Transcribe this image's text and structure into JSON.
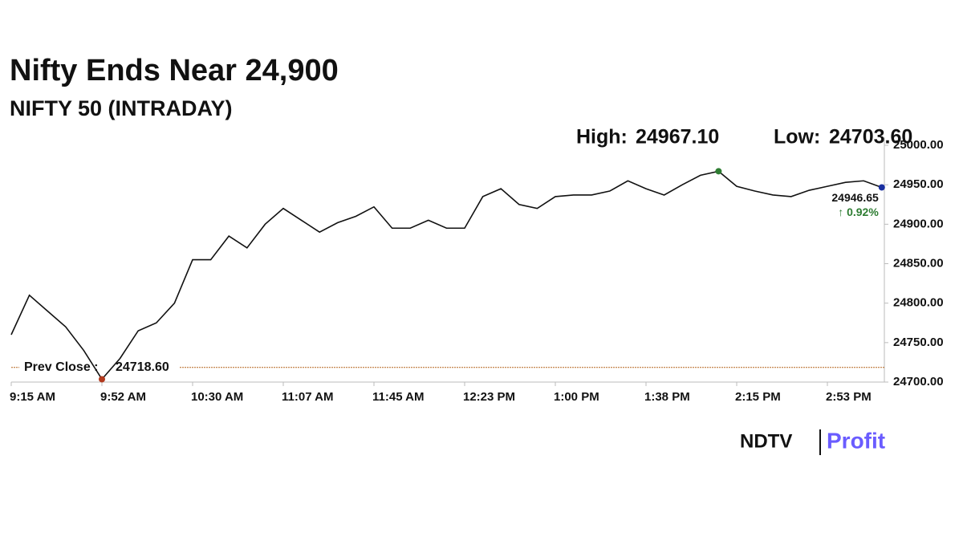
{
  "chart_data": {
    "type": "line",
    "title": "Nifty Ends Near 24,900",
    "subtitle": "NIFTY 50 (INTRADAY)",
    "high": {
      "label": "High:",
      "value": 24967.1,
      "value_label": "24967.10",
      "color": "#2e7d32"
    },
    "low": {
      "label": "Low:",
      "value": 24703.6,
      "value_label": "24703.60",
      "color": "#b23a1e"
    },
    "prev_close": {
      "label": "Prev Close :",
      "value": 24718.6,
      "value_label": "24718.60",
      "color": "#b5651d"
    },
    "last": {
      "value": 24946.65,
      "color": "#1a2fa0",
      "change_label": "↑ 0.92%",
      "change": 0.92,
      "change_color": "#2e7d32"
    },
    "categories": [
      "9:15 AM",
      null,
      null,
      null,
      null,
      "9:52 AM",
      null,
      null,
      null,
      null,
      "10:30 AM",
      null,
      null,
      null,
      null,
      "11:07 AM",
      null,
      null,
      null,
      null,
      "11:45 AM",
      null,
      null,
      null,
      null,
      "12:23 PM",
      null,
      null,
      null,
      null,
      "1:00 PM",
      null,
      null,
      null,
      null,
      "1:38 PM",
      null,
      null,
      null,
      null,
      "2:15 PM",
      null,
      null,
      null,
      null,
      "2:53 PM",
      null,
      null,
      null
    ],
    "series": [
      {
        "name": "NIFTY 50",
        "color": "#111111",
        "values": [
          24760,
          24810,
          24790,
          24770,
          24740,
          24703.6,
          24730,
          24765,
          24775,
          24800,
          24855,
          24855,
          24885,
          24870,
          24900,
          24920,
          24905,
          24890,
          24902,
          24910,
          24922,
          24895,
          24895,
          24905,
          24895,
          24895,
          24935,
          24945,
          24925,
          24920,
          24935,
          24937,
          24937,
          24942,
          24955,
          24945,
          24937,
          24950,
          24962,
          24967.1,
          24948,
          24942,
          24937,
          24935,
          24943,
          24948,
          24953,
          24955,
          24946.65
        ]
      }
    ],
    "ylim": [
      24700,
      25000
    ],
    "yticks": [
      {
        "value": 24700,
        "label": "24700.00"
      },
      {
        "value": 24750,
        "label": "24750.00"
      },
      {
        "value": 24800,
        "label": "24800.00"
      },
      {
        "value": 24850,
        "label": "24850.00"
      },
      {
        "value": 24900,
        "label": "24900.00"
      },
      {
        "value": 24950,
        "label": "24950.00"
      },
      {
        "value": 25000,
        "label": "25000.00"
      }
    ],
    "logo": {
      "left": "NDTV",
      "right": "Profit"
    }
  }
}
